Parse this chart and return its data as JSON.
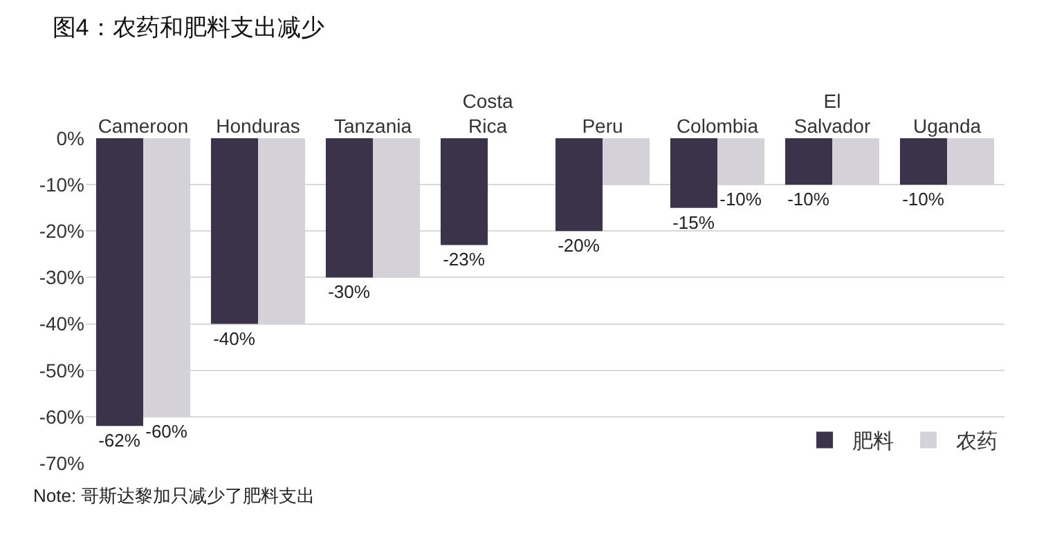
{
  "chart_data": {
    "type": "bar",
    "title": "图4：农药和肥料支出减少",
    "categories": [
      "Cameroon",
      "Honduras",
      "Tanzania",
      "Costa Rica",
      "Peru",
      "Colombia",
      "El Salvador",
      "Uganda"
    ],
    "series": [
      {
        "name": "肥料",
        "color": "#3b3349",
        "values": [
          -62,
          -40,
          -30,
          -23,
          -20,
          -15,
          -10,
          -10
        ],
        "value_labels": [
          "-62%",
          "-40%",
          "-30%",
          "-23%",
          "-20%",
          "-15%",
          "-10%",
          "-10%"
        ]
      },
      {
        "name": "农药",
        "color": "#d4d2d8",
        "values": [
          -60,
          -40,
          -30,
          null,
          -10,
          -10,
          -10,
          -10
        ],
        "value_labels": [
          "-60%",
          null,
          null,
          null,
          null,
          "-10%",
          null,
          null
        ]
      }
    ],
    "ylim": [
      -70,
      0
    ],
    "yticks": [
      {
        "value": 0,
        "label": "0%"
      },
      {
        "value": -10,
        "label": "-10%"
      },
      {
        "value": -20,
        "label": "-20%"
      },
      {
        "value": -30,
        "label": "-30%"
      },
      {
        "value": -40,
        "label": "-40%"
      },
      {
        "value": -50,
        "label": "-50%"
      },
      {
        "value": -60,
        "label": "-60%"
      },
      {
        "value": -70,
        "label": "-70%"
      }
    ],
    "grid": "y",
    "legend": "bottom right",
    "annotations": [
      "Note: 哥斯达黎加只减少了肥料支出"
    ]
  }
}
